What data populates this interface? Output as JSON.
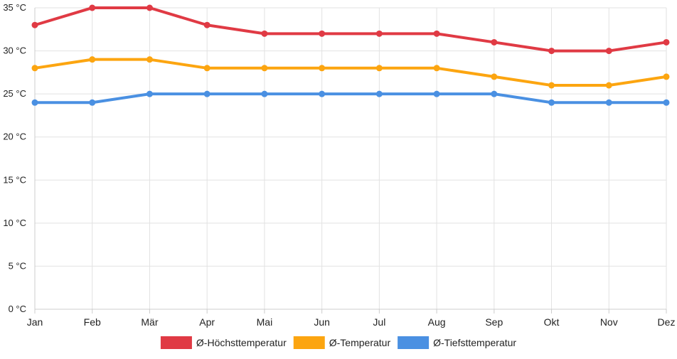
{
  "chart_data": {
    "type": "line",
    "categories": [
      "Jan",
      "Feb",
      "Mär",
      "Apr",
      "Mai",
      "Jun",
      "Jul",
      "Aug",
      "Sep",
      "Okt",
      "Nov",
      "Dez"
    ],
    "y_unit": "°C",
    "ylim": [
      0,
      35
    ],
    "y_ticks": [
      0,
      5,
      10,
      15,
      20,
      25,
      30,
      35
    ],
    "y_tick_labels": [
      "0 °C",
      "5 °C",
      "10 °C",
      "15 °C",
      "20 °C",
      "25 °C",
      "30 °C",
      "35 °C"
    ],
    "grid": true,
    "legend_position": "bottom",
    "series": [
      {
        "name": "Ø-Höchsttemperatur",
        "color": "#e03a44",
        "values": [
          33,
          35,
          35,
          33,
          32,
          32,
          32,
          32,
          31,
          30,
          30,
          31
        ]
      },
      {
        "name": "Ø-Temperatur",
        "color": "#fca510",
        "values": [
          28,
          29,
          29,
          28,
          28,
          28,
          28,
          28,
          27,
          26,
          26,
          27
        ]
      },
      {
        "name": "Ø-Tiefsttemperatur",
        "color": "#4a90e2",
        "values": [
          24,
          24,
          25,
          25,
          25,
          25,
          25,
          25,
          25,
          24,
          24,
          24
        ]
      }
    ]
  }
}
